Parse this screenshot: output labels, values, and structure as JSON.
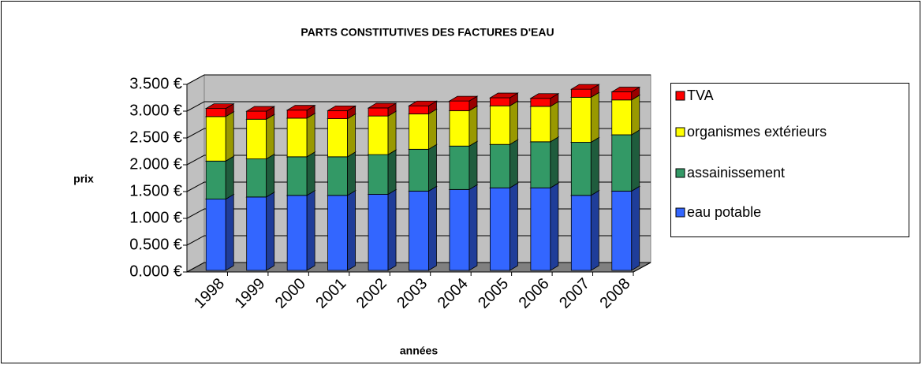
{
  "chart_data": {
    "type": "bar3d_stacked",
    "title": "PARTS CONSTITUTIVES DES FACTURES D'EAU",
    "x_label": "années",
    "y_label": "prix",
    "categories": [
      "1998",
      "1999",
      "2000",
      "2001",
      "2002",
      "2003",
      "2004",
      "2005",
      "2006",
      "2007",
      "2008"
    ],
    "series": [
      {
        "name": "eau potable",
        "color": "#3366ff",
        "values": [
          1.33,
          1.37,
          1.4,
          1.4,
          1.42,
          1.48,
          1.51,
          1.54,
          1.54,
          1.4,
          1.48
        ]
      },
      {
        "name": "assainissement",
        "color": "#339966",
        "values": [
          0.71,
          0.71,
          0.72,
          0.72,
          0.74,
          0.78,
          0.81,
          0.81,
          0.86,
          0.99,
          1.05
        ]
      },
      {
        "name": "organismes extérieurs",
        "color": "#ffff00",
        "values": [
          0.83,
          0.74,
          0.72,
          0.71,
          0.72,
          0.66,
          0.66,
          0.72,
          0.66,
          0.84,
          0.65
        ]
      },
      {
        "name": "TVA",
        "color": "#ff0000",
        "values": [
          0.15,
          0.15,
          0.15,
          0.15,
          0.15,
          0.15,
          0.18,
          0.15,
          0.15,
          0.15,
          0.15
        ]
      }
    ],
    "ylim": [
      0,
      3.5
    ],
    "yticks": [
      {
        "value": 0,
        "label": "0.000 €"
      },
      {
        "value": 0.5,
        "label": "0.500 €"
      },
      {
        "value": 1,
        "label": "1.000 €"
      },
      {
        "value": 1.5,
        "label": "1.500 €"
      },
      {
        "value": 2,
        "label": "2.000 €"
      },
      {
        "value": 2.5,
        "label": "2.500 €"
      },
      {
        "value": 3,
        "label": "3.000 €"
      },
      {
        "value": 3.5,
        "label": "3.500 €"
      }
    ],
    "grid": true,
    "legend": "right"
  }
}
